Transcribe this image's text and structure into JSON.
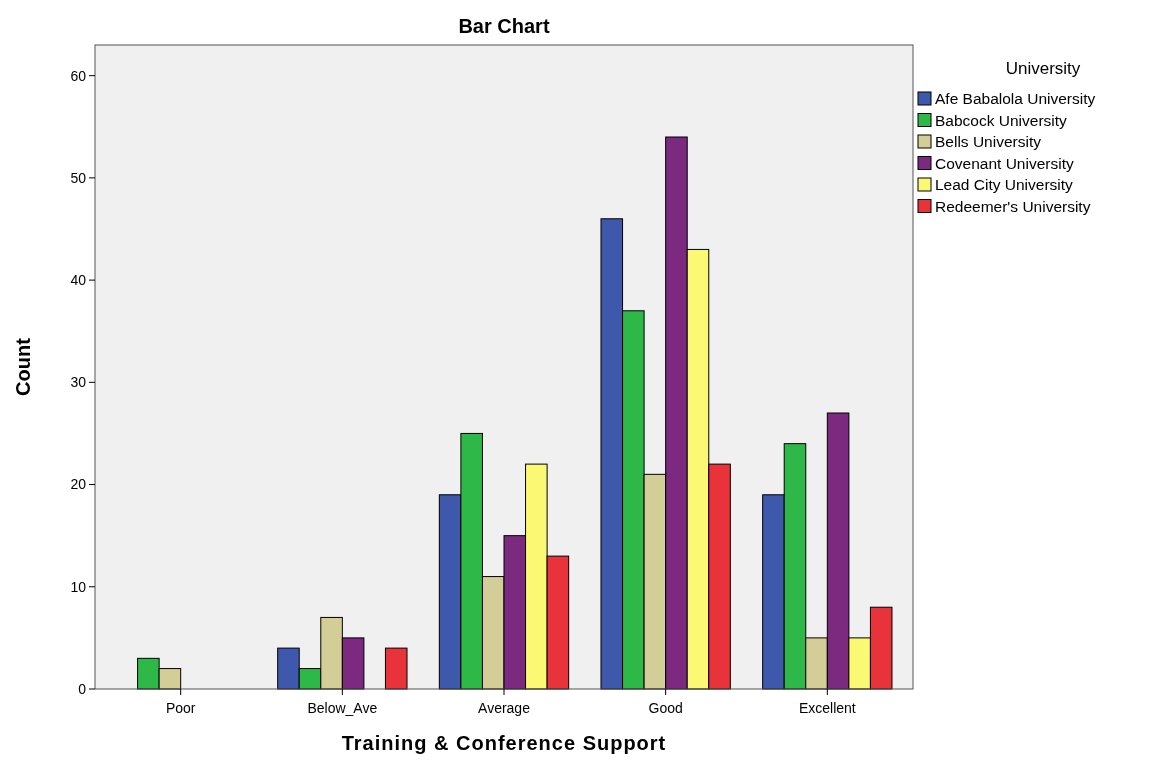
{
  "chart_data": {
    "type": "bar",
    "title": "Bar Chart",
    "xlabel": "Training & Conference Support",
    "ylabel": "Count",
    "legend_title": "University",
    "categories": [
      "Poor",
      "Below_Ave",
      "Average",
      "Good",
      "Excellent"
    ],
    "series": [
      {
        "name": "Afe Babalola University",
        "color": "#3e58ac",
        "values": [
          0,
          4,
          19,
          46,
          19
        ]
      },
      {
        "name": "Babcock University",
        "color": "#2eb848",
        "values": [
          3,
          2,
          25,
          37,
          24
        ]
      },
      {
        "name": "Bells University",
        "color": "#d3ce97",
        "values": [
          2,
          7,
          11,
          21,
          5
        ]
      },
      {
        "name": "Covenant University",
        "color": "#7b2a7f",
        "values": [
          0,
          5,
          15,
          54,
          27
        ]
      },
      {
        "name": "Lead City University",
        "color": "#fbf873",
        "values": [
          0,
          0,
          22,
          43,
          5
        ]
      },
      {
        "name": "Redeemer's University",
        "color": "#e8333a",
        "values": [
          0,
          4,
          13,
          22,
          8
        ]
      }
    ],
    "ylim": [
      0,
      63
    ],
    "yticks": [
      0,
      10,
      20,
      30,
      40,
      50,
      60
    ],
    "grid": false,
    "legend": "right"
  }
}
